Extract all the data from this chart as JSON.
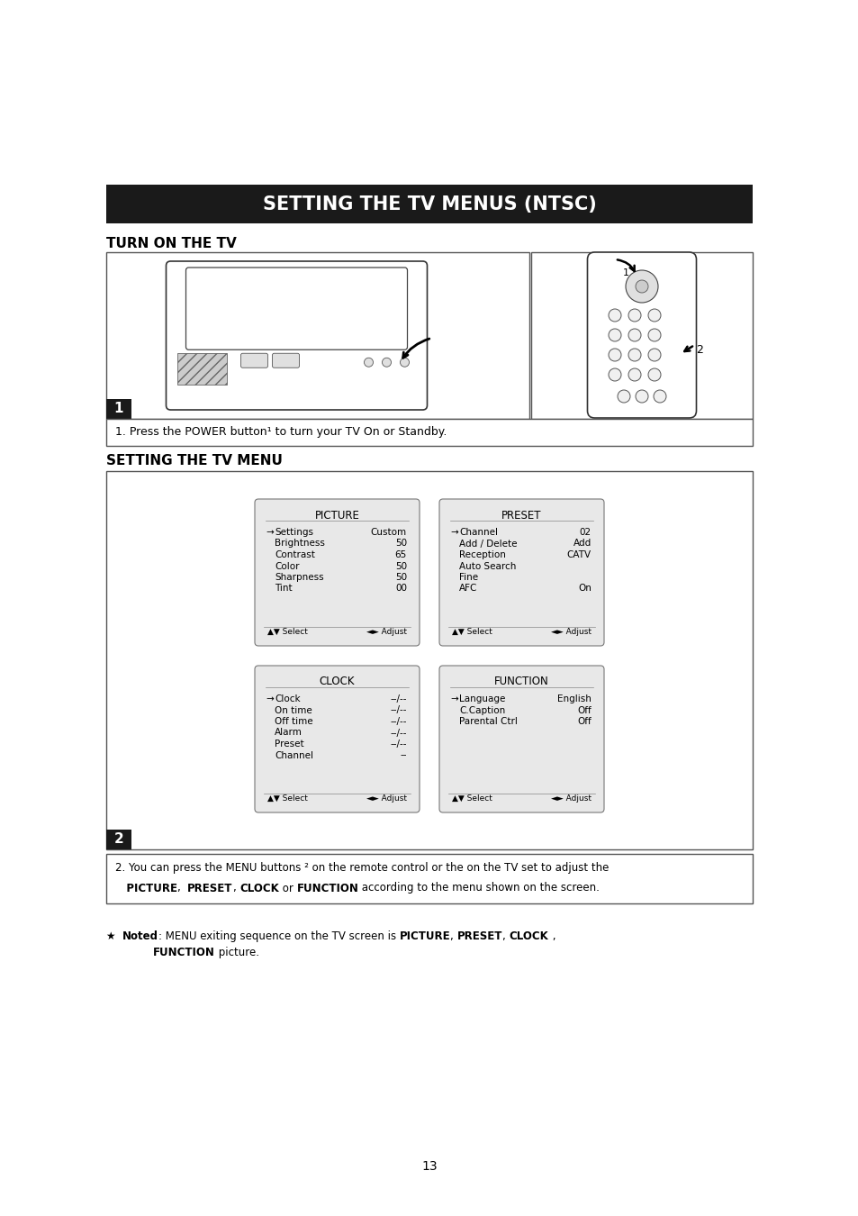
{
  "page_title": "SETTING THE TV MENUS (NTSC)",
  "section1_title": "TURN ON THE TV",
  "section2_title": "SETTING THE TV MENU",
  "step1_label": "1",
  "step2_label": "2",
  "caption1_plain": "1. Press the POWER button",
  "caption1_sym": "¹",
  "caption1_end": " to turn your TV On or Standby.",
  "caption2_line1": "2. You can press the MENU buttons ² on the remote control or the on the TV set to adjust the",
  "caption2_line2_parts": [
    {
      "text": "   PICTURE",
      "bold": true
    },
    {
      "text": ",  ",
      "bold": false
    },
    {
      "text": "PRESET",
      "bold": true
    },
    {
      "text": ", ",
      "bold": false
    },
    {
      "text": "CLOCK",
      "bold": true
    },
    {
      "text": " or ",
      "bold": false
    },
    {
      "text": "FUNCTION",
      "bold": true
    },
    {
      "text": " according to the menu shown on the screen.",
      "bold": false
    }
  ],
  "note_parts_line1": [
    {
      "text": "★  ",
      "bold": false
    },
    {
      "text": "Noted",
      "bold": true
    },
    {
      "text": ": MENU exiting sequence on the TV screen is ",
      "bold": false
    },
    {
      "text": "PICTURE",
      "bold": true
    },
    {
      "text": ", ",
      "bold": false
    },
    {
      "text": "PRESET",
      "bold": true
    },
    {
      "text": ", ",
      "bold": false
    },
    {
      "text": "CLOCK",
      "bold": true
    },
    {
      "text": " ,",
      "bold": false
    }
  ],
  "note_parts_line2": [
    {
      "text": "FUNCTION",
      "bold": true
    },
    {
      "text": " picture.",
      "bold": false
    }
  ],
  "page_number": "13",
  "picture_menu": {
    "title": "PICTURE",
    "rows": [
      [
        true,
        "Settings",
        "Custom"
      ],
      [
        false,
        "Brightness",
        "50"
      ],
      [
        false,
        "Contrast",
        "65"
      ],
      [
        false,
        "Color",
        "50"
      ],
      [
        false,
        "Sharpness",
        "50"
      ],
      [
        false,
        "Tint",
        "00"
      ]
    ],
    "footer_left": "▲▼ Select",
    "footer_right": "◄► Adjust"
  },
  "preset_menu": {
    "title": "PRESET",
    "rows": [
      [
        true,
        "Channel",
        "02"
      ],
      [
        false,
        "Add / Delete",
        "Add"
      ],
      [
        false,
        "Reception",
        "CATV"
      ],
      [
        false,
        "Auto Search",
        ""
      ],
      [
        false,
        "Fine",
        ""
      ],
      [
        false,
        "AFC",
        "On"
      ]
    ],
    "footer_left": "▲▼ Select",
    "footer_right": "◄► Adjust"
  },
  "clock_menu": {
    "title": "CLOCK",
    "rows": [
      [
        true,
        "Clock",
        "--/--"
      ],
      [
        false,
        "On time",
        "--/--"
      ],
      [
        false,
        "Off time",
        "--/--"
      ],
      [
        false,
        "Alarm",
        "--/--"
      ],
      [
        false,
        "Preset",
        "--/--"
      ],
      [
        false,
        "Channel",
        "--"
      ]
    ],
    "footer_left": "▲▼ Select",
    "footer_right": "◄► Adjust"
  },
  "function_menu": {
    "title": "FUNCTION",
    "rows": [
      [
        true,
        "Language",
        "English"
      ],
      [
        false,
        "C.Caption",
        "Off"
      ],
      [
        false,
        "Parental Ctrl",
        "Off"
      ]
    ],
    "footer_left": "▲▼ Select",
    "footer_right": "◄► Adjust"
  },
  "bg_color": "#ffffff",
  "title_bg": "#1a1a1a",
  "title_fg": "#ffffff",
  "border_color": "#555555",
  "menu_bg": "#e8e8e8",
  "menu_border": "#777777",
  "text_color": "#000000",
  "section_title_color": "#000000",
  "step_bg": "#1a1a1a",
  "step_fg": "#ffffff"
}
